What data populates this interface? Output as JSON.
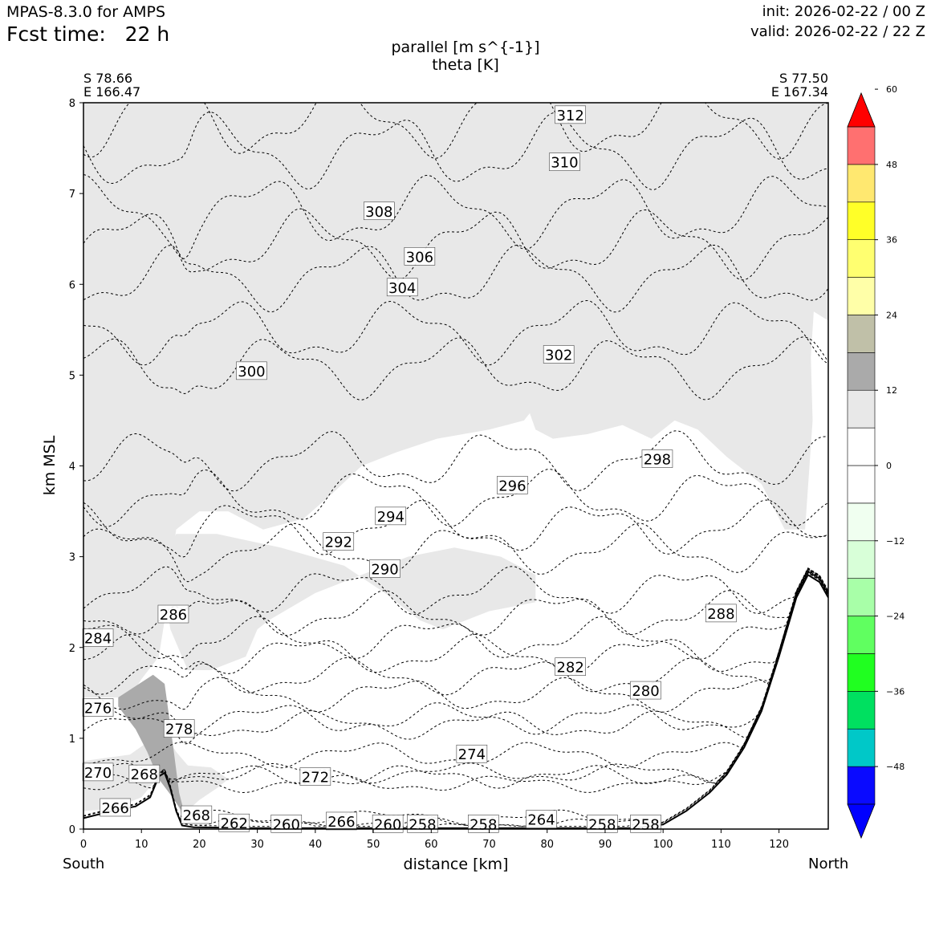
{
  "header": {
    "model": "MPAS-8.3.0 for AMPS",
    "fcst_label": "Fcst time:",
    "fcst_value": "22 h",
    "init": "init: 2026-02-22 / 00 Z",
    "valid": "valid: 2026-02-22 / 22 Z"
  },
  "titles": {
    "line1": "parallel [m s^{-1}]",
    "line2": "theta [K]"
  },
  "endpoints": {
    "left": {
      "lat": "S 78.66",
      "lon": "E 166.47",
      "direction": "South"
    },
    "right": {
      "lat": "S 77.50",
      "lon": "E 167.34",
      "direction": "North"
    }
  },
  "colors": {
    "terrain_line": "#000000",
    "isentrope": "#000000",
    "shade_light": "#e8e8e8",
    "shade_dark": "#aaaaaa"
  },
  "chart_data": {
    "type": "cross-section",
    "xlabel": "distance [km]",
    "ylabel": "km MSL",
    "xlim": [
      0,
      128.5
    ],
    "ylim": [
      0,
      8
    ],
    "xticks": [
      0,
      10,
      20,
      30,
      40,
      50,
      60,
      70,
      80,
      90,
      100,
      110,
      120
    ],
    "yticks": [
      0,
      1,
      2,
      3,
      4,
      5,
      6,
      7,
      8
    ],
    "colorbar": {
      "ticks": [
        60,
        48,
        36,
        24,
        12,
        0,
        -12,
        -24,
        -36,
        -48
      ],
      "tick_labels": [
        "60",
        "48",
        "36",
        "24",
        "12",
        "0",
        "−12",
        "−24",
        "−36",
        "−48"
      ],
      "levels": [
        -54,
        -48,
        -42,
        -36,
        -30,
        -24,
        -18,
        -12,
        -6,
        0,
        6,
        12,
        18,
        24,
        30,
        36,
        42,
        48,
        54
      ],
      "colors": [
        "#0a0aff",
        "#00c8c8",
        "#00e060",
        "#20ff20",
        "#60ff60",
        "#a8ffa8",
        "#d8ffd8",
        "#f0fff0",
        "#ffffff",
        "#ffffff",
        "#e8e8e8",
        "#aaaaaa",
        "#c0c0a8",
        "#ffffa8",
        "#ffff70",
        "#ffff28",
        "#ffe870",
        "#ff7070"
      ],
      "under_color": "#0000ff",
      "over_color": "#ff0000"
    },
    "terrain": [
      [
        0,
        0.12
      ],
      [
        5,
        0.2
      ],
      [
        9,
        0.25
      ],
      [
        11.5,
        0.35
      ],
      [
        13,
        0.58
      ],
      [
        14,
        0.62
      ],
      [
        15,
        0.45
      ],
      [
        16,
        0.2
      ],
      [
        17,
        0.04
      ],
      [
        19,
        0.02
      ],
      [
        30,
        0.01
      ],
      [
        60,
        0.01
      ],
      [
        95,
        0.01
      ],
      [
        100,
        0.05
      ],
      [
        104,
        0.2
      ],
      [
        108,
        0.4
      ],
      [
        111,
        0.6
      ],
      [
        114,
        0.9
      ],
      [
        117,
        1.3
      ],
      [
        120,
        1.9
      ],
      [
        123,
        2.55
      ],
      [
        125,
        2.8
      ],
      [
        127,
        2.72
      ],
      [
        128.5,
        2.55
      ]
    ],
    "isentropes": [
      {
        "theta": 262,
        "y": 0.02,
        "label_x": 26,
        "label_y": 0.06
      },
      {
        "theta": 264,
        "y": 0.06,
        "label_x": 79,
        "label_y": 0.1
      },
      {
        "theta": 266,
        "y": 0.13,
        "label_x": 5.5,
        "label_y": 0.23
      },
      {
        "theta": 268,
        "y": 0.5,
        "label_x": 10.5,
        "label_y": 0.6
      },
      {
        "theta": 270,
        "y": 0.62,
        "label_x": 2.5,
        "label_y": 0.62
      },
      {
        "theta": 272,
        "y": 0.58,
        "label_x": 40,
        "label_y": 0.57
      },
      {
        "theta": 274,
        "y": 0.82,
        "label_x": 67,
        "label_y": 0.82
      },
      {
        "theta": 276,
        "y": 1.15,
        "label_x": 2.5,
        "label_y": 1.33
      },
      {
        "theta": 278,
        "y": 1.22,
        "label_x": 16.5,
        "label_y": 1.1
      },
      {
        "theta": 280,
        "y": 1.48,
        "label_x": 97,
        "label_y": 1.52
      },
      {
        "theta": 282,
        "y": 1.68,
        "label_x": 84,
        "label_y": 1.78
      },
      {
        "theta": 284,
        "y": 1.92,
        "label_x": 2.5,
        "label_y": 2.1
      },
      {
        "theta": 286,
        "y": 2.1,
        "label_x": 15.5,
        "label_y": 2.36
      },
      {
        "theta": 288,
        "y": 2.37,
        "label_x": 110,
        "label_y": 2.37
      },
      {
        "theta": 290,
        "y": 2.62,
        "label_x": 52,
        "label_y": 2.86
      },
      {
        "theta": 292,
        "y": 3.08,
        "label_x": 44,
        "label_y": 3.16
      },
      {
        "theta": 294,
        "y": 3.32,
        "label_x": 53,
        "label_y": 3.44
      },
      {
        "theta": 296,
        "y": 3.65,
        "label_x": 74,
        "label_y": 3.78
      },
      {
        "theta": 298,
        "y": 4.06,
        "label_x": 99,
        "label_y": 4.07
      },
      {
        "theta": 300,
        "y": 5.08,
        "label_x": 29,
        "label_y": 5.04
      },
      {
        "theta": 302,
        "y": 5.48,
        "label_x": 82,
        "label_y": 5.22
      },
      {
        "theta": 304,
        "y": 6.08,
        "label_x": 55,
        "label_y": 5.96
      },
      {
        "theta": 306,
        "y": 6.45,
        "label_x": 58,
        "label_y": 6.3
      },
      {
        "theta": 308,
        "y": 6.8,
        "label_x": 51,
        "label_y": 6.8
      },
      {
        "theta": 310,
        "y": 7.47,
        "label_x": 83,
        "label_y": 7.34
      },
      {
        "theta": 312,
        "y": 7.82,
        "label_x": 84,
        "label_y": 7.86
      }
    ],
    "extra_labels": [
      {
        "text": "268",
        "x": 19.5,
        "y": 0.15
      },
      {
        "text": "260",
        "x": 35,
        "y": 0.05
      },
      {
        "text": "266",
        "x": 44.5,
        "y": 0.08
      },
      {
        "text": "260",
        "x": 52.5,
        "y": 0.05
      },
      {
        "text": "258",
        "x": 58.5,
        "y": 0.05
      },
      {
        "text": "258",
        "x": 69,
        "y": 0.05
      },
      {
        "text": "258",
        "x": 89.5,
        "y": 0.05
      },
      {
        "text": "258",
        "x": 97,
        "y": 0.05
      }
    ],
    "shading": [
      {
        "level": "6 to 12",
        "polygon": [
          [
            0,
            8
          ],
          [
            128.5,
            8
          ],
          [
            128.5,
            5.6
          ],
          [
            126,
            5.7
          ],
          [
            125.5,
            5.2
          ],
          [
            125.8,
            4.5
          ],
          [
            124.5,
            3.3
          ],
          [
            121,
            3.3
          ],
          [
            117,
            3.8
          ],
          [
            111,
            4.1
          ],
          [
            106,
            4.4
          ],
          [
            102,
            4.5
          ],
          [
            98,
            4.3
          ],
          [
            93,
            4.45
          ],
          [
            87,
            4.35
          ],
          [
            81,
            4.3
          ],
          [
            78,
            4.4
          ],
          [
            77,
            4.58
          ],
          [
            76,
            4.5
          ],
          [
            70,
            4.4
          ],
          [
            61,
            4.3
          ],
          [
            54,
            4.15
          ],
          [
            48,
            4.0
          ],
          [
            43,
            3.7
          ],
          [
            38,
            3.42
          ],
          [
            31,
            3.3
          ],
          [
            25,
            3.5
          ],
          [
            20,
            3.5
          ],
          [
            16,
            3.3
          ],
          [
            15,
            2.85
          ],
          [
            14,
            2.3
          ],
          [
            13,
            1.9
          ],
          [
            10,
            1.65
          ],
          [
            8,
            1.45
          ],
          [
            0,
            1.45
          ]
        ]
      },
      {
        "level": "6 to 12",
        "polygon": [
          [
            0,
            0.75
          ],
          [
            8,
            0.82
          ],
          [
            12,
            1.0
          ],
          [
            14,
            1.05
          ],
          [
            16,
            0.85
          ],
          [
            18,
            0.7
          ],
          [
            22,
            0.68
          ],
          [
            25,
            0.55
          ],
          [
            23,
            0.45
          ],
          [
            20,
            0.32
          ],
          [
            17,
            0.15
          ],
          [
            15,
            0.45
          ],
          [
            13,
            0.58
          ],
          [
            10,
            0.35
          ],
          [
            5,
            0.22
          ],
          [
            0,
            0.2
          ]
        ]
      },
      {
        "level": "6 to 12",
        "polygon": [
          [
            14,
            3.0
          ],
          [
            16,
            3.25
          ],
          [
            23,
            3.25
          ],
          [
            34,
            3.1
          ],
          [
            45,
            2.9
          ],
          [
            52,
            2.6
          ],
          [
            58,
            2.3
          ],
          [
            62,
            2.2
          ],
          [
            70,
            2.4
          ],
          [
            78,
            2.5
          ],
          [
            78,
            2.8
          ],
          [
            72,
            3.0
          ],
          [
            64,
            3.1
          ],
          [
            56,
            3.0
          ],
          [
            48,
            2.8
          ],
          [
            40,
            2.6
          ],
          [
            32,
            2.3
          ],
          [
            30,
            2.2
          ],
          [
            28,
            1.9
          ],
          [
            22,
            1.75
          ],
          [
            18,
            1.75
          ],
          [
            15,
            2.2
          ],
          [
            14,
            2.6
          ]
        ]
      },
      {
        "level": "12 to 18",
        "polygon": [
          [
            6,
            1.45
          ],
          [
            12,
            1.7
          ],
          [
            14,
            1.6
          ],
          [
            15.5,
            0.9
          ],
          [
            16.5,
            0.4
          ],
          [
            17.5,
            0.15
          ],
          [
            15,
            0.38
          ],
          [
            13,
            0.55
          ],
          [
            11,
            0.85
          ],
          [
            9,
            1.1
          ],
          [
            6,
            1.35
          ]
        ]
      }
    ]
  }
}
